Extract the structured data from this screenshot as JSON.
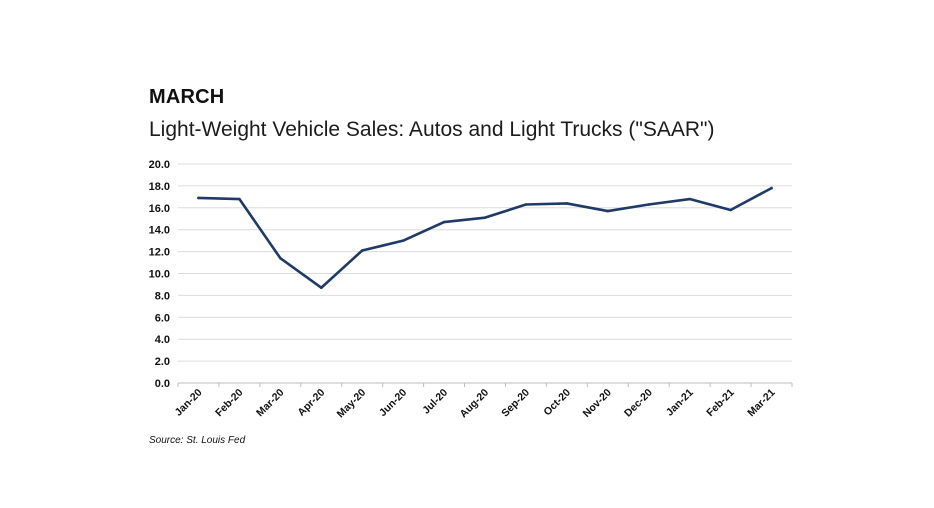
{
  "header": {
    "label": "MARCH"
  },
  "chart_data": {
    "type": "line",
    "title": "Light-Weight Vehicle Sales: Autos and Light Trucks (\"SAAR\")",
    "xlabel": "",
    "ylabel": "",
    "categories": [
      "Jan-20",
      "Feb-20",
      "Mar-20",
      "Apr-20",
      "May-20",
      "Jun-20",
      "Jul-20",
      "Aug-20",
      "Sep-20",
      "Oct-20",
      "Nov-20",
      "Dec-20",
      "Jan-21",
      "Feb-21",
      "Mar-21"
    ],
    "series": [
      {
        "name": "Light-Weight Vehicle Sales",
        "values": [
          16.9,
          16.8,
          11.4,
          8.7,
          12.1,
          13.0,
          14.7,
          15.1,
          16.3,
          16.4,
          15.7,
          16.3,
          16.8,
          15.8,
          17.8
        ],
        "color": "#1f3a66"
      }
    ],
    "ylim": [
      0,
      20
    ],
    "yticks": [
      "0.0",
      "2.0",
      "4.0",
      "6.0",
      "8.0",
      "10.0",
      "12.0",
      "14.0",
      "16.0",
      "18.0",
      "20.0"
    ],
    "grid": true,
    "legend": "none"
  },
  "source": {
    "text": "Source: St. Louis Fed"
  },
  "colors": {
    "line": "#1f3a66",
    "grid": "#dcdcdc",
    "axis": "#bfbfbf"
  }
}
